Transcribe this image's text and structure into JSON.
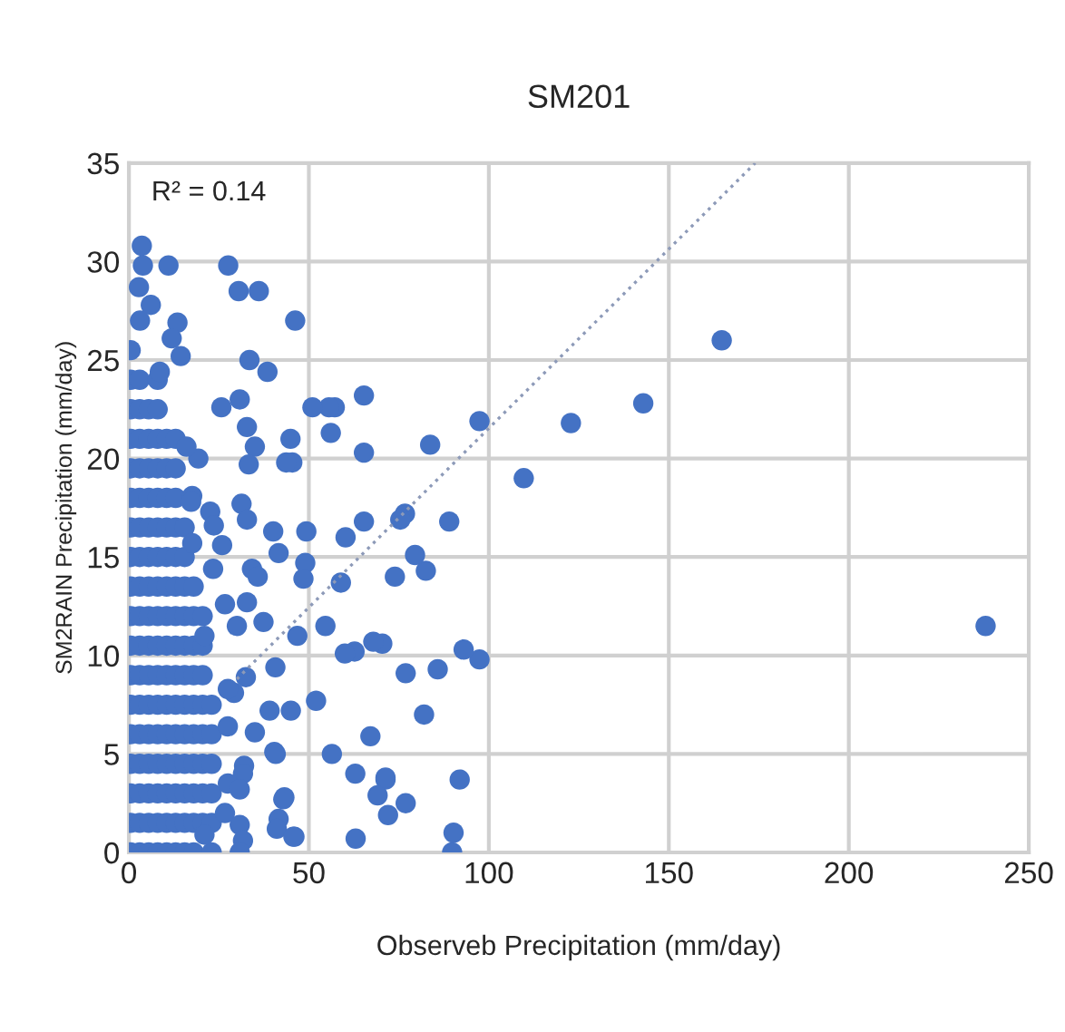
{
  "chart_data": {
    "type": "scatter",
    "title": "SM201",
    "xlabel": "Observeb Precipitation (mm/day)",
    "ylabel": "SM2RAIN Precipitation (mm/day)",
    "annotations": [
      "R² = 0.14"
    ],
    "xlim": [
      0,
      250
    ],
    "xticks": [
      0,
      50,
      100,
      150,
      200,
      250
    ],
    "ylim": [
      0,
      35
    ],
    "yticks": [
      0,
      5,
      10,
      15,
      20,
      25,
      30,
      35
    ],
    "grid": true,
    "legend": false,
    "series": [
      {
        "color": "#4472c4",
        "marker": "circle",
        "x": [
          0.5,
          0.5,
          0.5,
          0.5,
          0.5,
          0.5,
          0.5,
          0.5,
          0.5,
          0.5,
          0.5,
          0.5,
          0.5,
          0.5,
          0.5,
          0.5,
          0.5,
          0.5,
          3,
          3,
          3,
          3,
          3,
          3,
          3,
          3,
          3,
          3,
          3,
          3,
          3,
          3,
          3,
          3,
          3,
          5.5,
          5.5,
          5.5,
          5.5,
          5.5,
          5.5,
          5.5,
          5.5,
          5.5,
          5.5,
          5.5,
          5.5,
          5.5,
          5.5,
          5.5,
          5.5,
          8,
          8,
          8,
          8,
          8,
          8,
          8,
          8,
          8,
          8,
          8,
          8,
          8,
          8,
          8,
          8,
          8,
          10.5,
          10.5,
          10.5,
          10.5,
          10.5,
          10.5,
          10.5,
          10.5,
          10.5,
          10.5,
          10.5,
          10.5,
          10.5,
          10.5,
          10.5,
          13,
          13,
          13,
          13,
          13,
          13,
          13,
          13,
          13,
          13,
          13,
          13,
          13,
          13,
          13,
          15.5,
          15.5,
          15.5,
          15.5,
          15.5,
          15.5,
          15.5,
          15.5,
          15.5,
          15.5,
          15.5,
          15.5,
          18,
          18,
          18,
          18,
          18,
          18,
          18,
          18,
          18,
          18,
          20.5,
          20.5,
          20.5,
          20.5,
          20.5,
          20.5,
          20.5,
          20.5,
          23,
          23,
          23,
          23,
          23,
          23,
          238,
          164.7,
          142.9,
          122.8,
          109.7,
          97.4,
          97.4,
          93,
          91.9,
          90.2,
          89.8,
          85.8,
          82,
          83.7,
          89,
          82.5,
          79.5,
          76.7,
          75.4,
          73.9,
          76.9,
          76.9,
          72,
          71.3,
          69.1,
          67.1,
          70.4,
          67.9,
          62.7,
          60,
          63,
          62.9,
          56.4,
          52,
          54.6,
          58.9,
          60.2,
          65.3,
          65.3,
          65.3,
          56.1,
          57.2,
          55.6,
          51,
          46.2,
          49.3,
          49,
          48.5,
          46.8,
          45,
          44.9,
          45.4,
          46,
          42.9,
          41.6,
          40.8,
          3.6,
          3.9,
          11,
          27.6,
          2.8,
          30.5,
          36.1,
          6.1,
          3.1,
          13.5,
          11.9,
          33.5,
          14.4,
          38.5,
          8.6,
          25.7,
          30.8,
          32.8,
          35,
          33.3,
          43.7,
          19.3,
          16,
          17.6,
          17.3,
          31.3,
          32.8,
          22.6,
          23.6,
          40.1,
          41.6,
          17.6,
          25.9,
          34.2,
          35.8,
          23.4,
          26.7,
          32.8,
          37.4,
          30,
          21,
          40.7,
          32.5,
          29.2,
          27.5,
          39.1,
          35,
          27.5,
          40.4,
          32,
          31.7,
          71.3,
          27.5,
          30.8,
          43.2,
          26.7,
          41.1,
          45.7,
          30.8,
          31.7,
          30.8,
          21
        ],
        "values": [
          0,
          1.5,
          3,
          4.5,
          6,
          7.5,
          9,
          10.5,
          12,
          13.5,
          15,
          16.5,
          18,
          19.5,
          21,
          22.5,
          24,
          25.5,
          0,
          1.5,
          3,
          4.5,
          6,
          7.5,
          9,
          10.5,
          12,
          13.5,
          15,
          16.5,
          18,
          19.5,
          21,
          22.5,
          24,
          0,
          1.5,
          3,
          4.5,
          6,
          7.5,
          9,
          10.5,
          12,
          13.5,
          15,
          16.5,
          18,
          19.5,
          21,
          22.5,
          0,
          1.5,
          3,
          4.5,
          6,
          7.5,
          9,
          10.5,
          12,
          13.5,
          15,
          16.5,
          18,
          19.5,
          21,
          22.5,
          24,
          0,
          1.5,
          3,
          4.5,
          6,
          7.5,
          9,
          10.5,
          12,
          13.5,
          15,
          16.5,
          18,
          19.5,
          21,
          0,
          1.5,
          3,
          4.5,
          6,
          7.5,
          9,
          10.5,
          12,
          13.5,
          15,
          16.5,
          18,
          19.5,
          21,
          0,
          1.5,
          3,
          4.5,
          6,
          7.5,
          9,
          10.5,
          12,
          13.5,
          15,
          16.5,
          0,
          1.5,
          3,
          4.5,
          6,
          7.5,
          9,
          10.5,
          12,
          13.5,
          1.5,
          3,
          4.5,
          6,
          7.5,
          9,
          10.5,
          12,
          0,
          1.5,
          3,
          4.5,
          6,
          7.5,
          11.5,
          26,
          22.8,
          21.8,
          19,
          21.9,
          9.8,
          10.3,
          3.7,
          1,
          0,
          9.3,
          7,
          20.7,
          16.8,
          14.3,
          15.1,
          17.2,
          16.9,
          14,
          9.1,
          2.5,
          1.9,
          3.7,
          2.9,
          5.9,
          10.6,
          10.7,
          10.2,
          10.1,
          0.7,
          4,
          5,
          7.7,
          11.5,
          13.7,
          16,
          16.8,
          20.3,
          23.2,
          21.3,
          22.6,
          22.6,
          22.6,
          27,
          16.3,
          14.7,
          13.9,
          11,
          7.2,
          21,
          19.8,
          0.8,
          2.7,
          1.7,
          5,
          30.8,
          29.8,
          29.8,
          29.8,
          28.7,
          28.5,
          28.5,
          27.8,
          27,
          26.9,
          26.1,
          25,
          25.2,
          24.4,
          24.4,
          22.6,
          23,
          21.6,
          20.6,
          19.7,
          19.8,
          20,
          20.6,
          18.1,
          17.8,
          17.7,
          16.9,
          17.3,
          16.6,
          16.3,
          15.2,
          15.7,
          15.6,
          14.4,
          14,
          14.4,
          12.6,
          12.7,
          11.7,
          11.5,
          11,
          9.4,
          8.9,
          8.1,
          8.3,
          7.2,
          6.1,
          6.4,
          5.1,
          4.4,
          4,
          3.8,
          3.5,
          3.2,
          2.8,
          2,
          1.2,
          0.8,
          1.4,
          0.6,
          0,
          0.9
        ]
      },
      {
        "type": "line",
        "color": "#8d9ab8",
        "marker": "none",
        "line_style": "dotted",
        "x": [
          30,
          174
        ],
        "values": [
          8.8,
          35
        ]
      }
    ]
  }
}
